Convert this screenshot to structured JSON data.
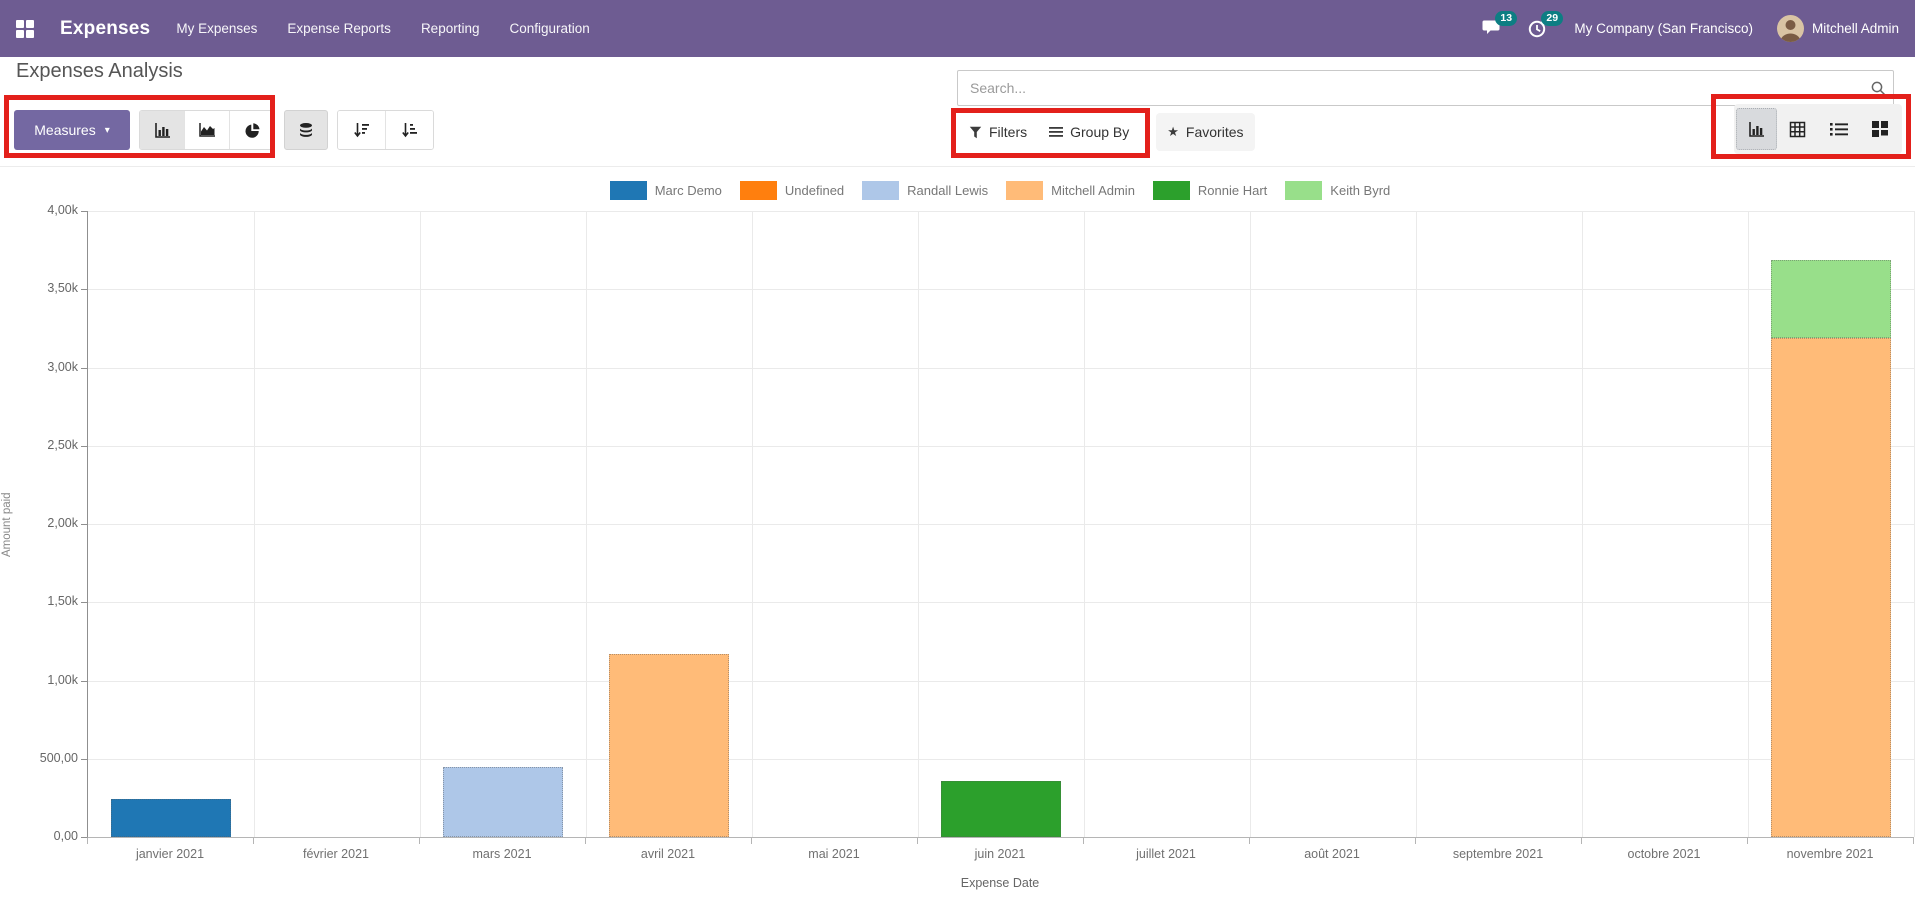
{
  "navbar": {
    "brand": "Expenses",
    "menu": [
      "My Expenses",
      "Expense Reports",
      "Reporting",
      "Configuration"
    ],
    "messages_count": "13",
    "activities_count": "29",
    "company": "My Company (San Francisco)",
    "user": "Mitchell Admin"
  },
  "header": {
    "title": "Expenses Analysis",
    "measures_label": "Measures",
    "search_placeholder": "Search...",
    "filters_label": "Filters",
    "group_by_label": "Group By",
    "favorites_label": "Favorites"
  },
  "icons": {
    "toolbar_chart_types": [
      "bar-chart-icon",
      "area-chart-icon",
      "pie-chart-icon"
    ],
    "stacked_toggle": "stacked-icon",
    "sort_buttons": [
      "sort-desc-icon",
      "sort-asc-icon"
    ],
    "view_switcher": [
      "graph-view-icon",
      "pivot-view-icon",
      "list-view-icon",
      "kanban-view-icon"
    ],
    "favorites_star": "★",
    "measures_caret": "▾"
  },
  "colors": {
    "navbar": "#6e5c92",
    "primary_button": "#7468a2",
    "badge": "#0d7e83",
    "annotation": "#e3201b"
  },
  "chart_data": {
    "type": "bar",
    "stacked": true,
    "title": "",
    "xlabel": "Expense Date",
    "ylabel": "Amount paid",
    "ylim": [
      0,
      4000
    ],
    "grid": true,
    "legend_position": "top",
    "ytick_values": [
      0,
      500,
      1000,
      1500,
      2000,
      2500,
      3000,
      3500,
      4000
    ],
    "ytick_labels": [
      "0,00",
      "500,00",
      "1,00k",
      "1,50k",
      "2,00k",
      "2,50k",
      "3,00k",
      "3,50k",
      "4,00k"
    ],
    "categories": [
      "janvier 2021",
      "février 2021",
      "mars 2021",
      "avril 2021",
      "mai 2021",
      "juin 2021",
      "juillet 2021",
      "août 2021",
      "septembre 2021",
      "octobre 2021",
      "novembre 2021"
    ],
    "series": [
      {
        "name": "Marc Demo",
        "color": "#1f77b4",
        "values": [
          240,
          0,
          0,
          0,
          0,
          0,
          0,
          0,
          0,
          0,
          0
        ]
      },
      {
        "name": "Undefined",
        "color": "#ff7f0e",
        "values": [
          0,
          0,
          0,
          0,
          0,
          0,
          0,
          0,
          0,
          0,
          0
        ]
      },
      {
        "name": "Randall Lewis",
        "color": "#aec7e8",
        "values": [
          0,
          0,
          450,
          0,
          0,
          0,
          0,
          0,
          0,
          0,
          0
        ]
      },
      {
        "name": "Mitchell Admin",
        "color": "#ffbb78",
        "values": [
          0,
          0,
          0,
          1170,
          0,
          0,
          0,
          0,
          0,
          0,
          3190
        ]
      },
      {
        "name": "Ronnie Hart",
        "color": "#2ca02c",
        "values": [
          0,
          0,
          0,
          0,
          0,
          360,
          0,
          0,
          0,
          0,
          0
        ]
      },
      {
        "name": "Keith Byrd",
        "color": "#98df8a",
        "values": [
          0,
          0,
          0,
          0,
          0,
          0,
          0,
          0,
          0,
          0,
          500
        ]
      }
    ]
  }
}
